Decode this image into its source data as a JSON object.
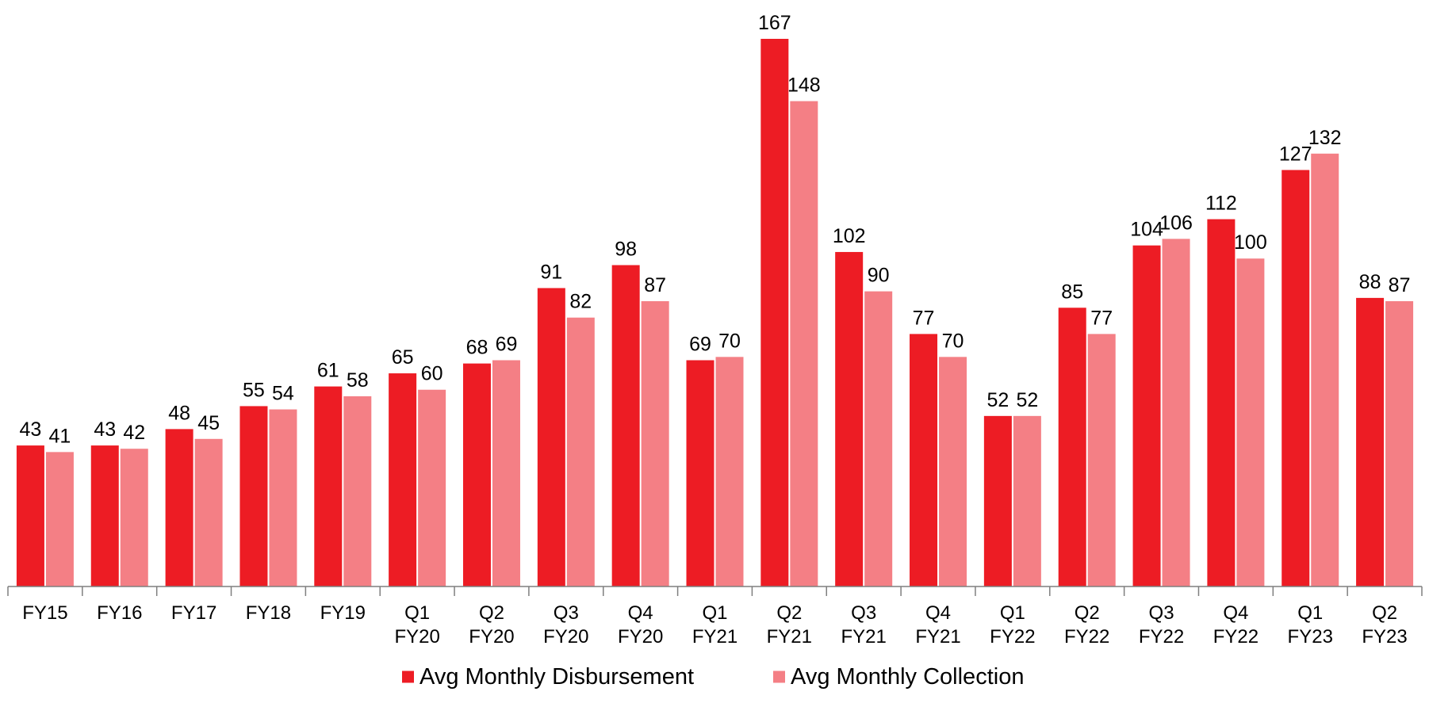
{
  "chart_data": {
    "type": "bar",
    "title": "",
    "xlabel": "",
    "ylabel": "",
    "categories": [
      [
        "FY15"
      ],
      [
        "FY16"
      ],
      [
        "FY17"
      ],
      [
        "FY18"
      ],
      [
        "FY19"
      ],
      [
        "Q1",
        "FY20"
      ],
      [
        "Q2",
        "FY20"
      ],
      [
        "Q3",
        "FY20"
      ],
      [
        "Q4",
        "FY20"
      ],
      [
        "Q1",
        "FY21"
      ],
      [
        "Q2",
        "FY21"
      ],
      [
        "Q3",
        "FY21"
      ],
      [
        "Q4",
        "FY21"
      ],
      [
        "Q1",
        "FY22"
      ],
      [
        "Q2",
        "FY22"
      ],
      [
        "Q3",
        "FY22"
      ],
      [
        "Q4",
        "FY22"
      ],
      [
        "Q1",
        "FY23"
      ],
      [
        "Q2",
        "FY23"
      ]
    ],
    "series": [
      {
        "name": "Avg Monthly Disbursement",
        "color": "#ED1C24",
        "values": [
          43,
          43,
          48,
          55,
          61,
          65,
          68,
          91,
          98,
          69,
          167,
          102,
          77,
          52,
          85,
          104,
          112,
          127,
          88
        ]
      },
      {
        "name": "Avg Monthly Collection",
        "color": "#F47F85",
        "values": [
          41,
          42,
          45,
          54,
          58,
          60,
          69,
          82,
          87,
          70,
          148,
          90,
          70,
          52,
          77,
          106,
          100,
          132,
          87
        ]
      }
    ],
    "ylim": [
      0,
      167
    ],
    "grid": false,
    "y_axis_visible": false,
    "data_labels": true,
    "legend_position": "bottom-center",
    "axis_color": "#7F7F7F"
  }
}
